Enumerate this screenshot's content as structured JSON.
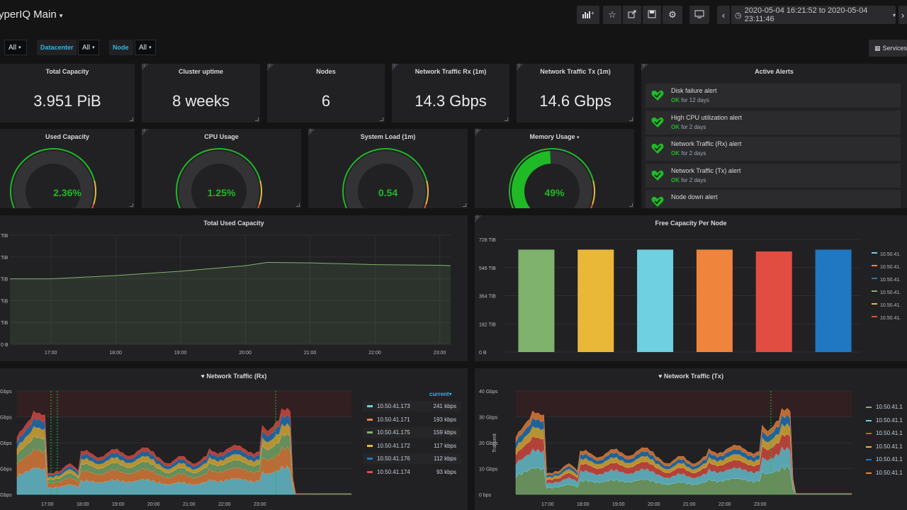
{
  "topbar": {
    "dashboard_title": "yperIQ Main",
    "time_range": "2020-05-04 16:21:52 to 2020-05-04 23:11:46",
    "icons": [
      "add-panel-icon",
      "star-icon",
      "share-icon",
      "save-icon",
      "settings-icon",
      "tv-mode-icon",
      "chevron-left-icon",
      "clock-icon",
      "chevron-right-icon"
    ]
  },
  "variables": {
    "first_value": "All",
    "datacenter_label": "Datacenter",
    "datacenter_value": "All",
    "node_label": "Node",
    "node_value": "All",
    "services_button": "Services"
  },
  "stats": {
    "total_capacity": {
      "title": "Total Capacity",
      "value": "3.951 PiB"
    },
    "cluster_uptime": {
      "title": "Cluster uptime",
      "value": "8 weeks"
    },
    "nodes": {
      "title": "Nodes",
      "value": "6"
    },
    "net_rx": {
      "title": "Network Traffic Rx (1m)",
      "value": "14.3 Gbps"
    },
    "net_tx": {
      "title": "Network Traffic Tx (1m)",
      "value": "14.6 Gbps"
    }
  },
  "gauges": {
    "used_capacity": {
      "title": "Used Capacity",
      "value": "2.36%",
      "fraction": 0.0236,
      "color": "#1fba26"
    },
    "cpu_usage": {
      "title": "CPU Usage",
      "value": "1.25%",
      "fraction": 0.0125,
      "color": "#1fba26"
    },
    "system_load": {
      "title": "System Load  (1m)",
      "value": "0.54",
      "fraction": 0.0,
      "color": "#1fba26"
    },
    "memory_usage": {
      "title": "Memory Usage",
      "value": "49%",
      "fraction": 0.49,
      "color": "#1fba26"
    }
  },
  "alerts": {
    "title": "Active Alerts",
    "items": [
      {
        "name": "Disk failure alert",
        "state": "OK",
        "since": "for 12 days"
      },
      {
        "name": "High CPU utilization alert",
        "state": "OK",
        "since": "for 2 days"
      },
      {
        "name": "Network Traffic (Rx) alert",
        "state": "OK",
        "since": "for 2 days"
      },
      {
        "name": "Network Traffic (Tx) alert",
        "state": "OK",
        "since": "for 2 days"
      },
      {
        "name": "Node down alert",
        "state": "",
        "since": ""
      }
    ]
  },
  "colors": {
    "ok": "#1fba26",
    "accent": "#33b5e5",
    "panel": "#212124",
    "series": [
      "#7eb26d",
      "#eab839",
      "#6ed0e0",
      "#ef843c",
      "#e24d42",
      "#1f78c1"
    ]
  },
  "chart_data": [
    {
      "type": "area",
      "title": "Total Used Capacity",
      "x_ticks": [
        "17:00",
        "18:00",
        "19:00",
        "20:00",
        "21:00",
        "22:00",
        "23:00"
      ],
      "y_ticks": [
        "0 B",
        "TiB",
        "TiB",
        "TiB",
        "TiB",
        "TiB"
      ],
      "ylim": [
        0,
        5
      ],
      "x": [
        "16:22",
        "17:00",
        "18:00",
        "19:00",
        "20:00",
        "20:20",
        "21:00",
        "22:00",
        "23:00",
        "23:10"
      ],
      "values": [
        3.0,
        3.0,
        3.15,
        3.35,
        3.6,
        3.75,
        3.73,
        3.65,
        3.62,
        3.6
      ],
      "series": [
        {
          "name": "",
          "color": "#7eb26d"
        }
      ]
    },
    {
      "type": "bar",
      "title": "Free Capacity Per Node",
      "y_ticks": [
        "0 B",
        "182 TiB",
        "364 TiB",
        "546 TiB",
        "728 TiB"
      ],
      "ylim": [
        0,
        728
      ],
      "categories": [
        "10.50.41.",
        "10.50.41.",
        "10.50.41.",
        "10.50.41.",
        "10.50.41.",
        "10.50.41."
      ],
      "values": [
        662,
        662,
        662,
        662,
        650,
        662
      ],
      "colors": [
        "#7eb26d",
        "#eab839",
        "#6ed0e0",
        "#ef843c",
        "#e24d42",
        "#1f78c1"
      ],
      "legend_colors": [
        "#6ed0e0",
        "#ef843c",
        "#1f78c1",
        "#7eb26d",
        "#eab839",
        "#e24d42"
      ]
    },
    {
      "type": "area",
      "title": "Network Traffic (Rx)",
      "x_ticks": [
        "17:00",
        "18:00",
        "19:00",
        "20:00",
        "21:00",
        "22:00",
        "23:00"
      ],
      "y_ticks": [
        "Gbps",
        "Gbps",
        "Gbps",
        "Gbps",
        "Gbps"
      ],
      "ylim": [
        0,
        40
      ],
      "threshold": 30,
      "legend_header": "current",
      "series": [
        {
          "name": "10.50.41.173",
          "current": "241 kbps",
          "color": "#6ed0e0"
        },
        {
          "name": "10.50.41.171",
          "current": "193 kbps",
          "color": "#ef843c"
        },
        {
          "name": "10.50.41.175",
          "current": "159 kbps",
          "color": "#7eb26d"
        },
        {
          "name": "10.50.41.172",
          "current": "117 kbps",
          "color": "#eab839"
        },
        {
          "name": "10.50.41.176",
          "current": "112 kbps",
          "color": "#1f78c1"
        },
        {
          "name": "10.50.41.174",
          "current": "93 kbps",
          "color": "#e24d42"
        }
      ]
    },
    {
      "type": "area",
      "title": "Network Traffic (Tx)",
      "ylabel": "Transmit",
      "x_ticks": [
        "17:00",
        "18:00",
        "19:00",
        "20:00",
        "21:00",
        "22:00",
        "23:00"
      ],
      "y_ticks": [
        "0 bps",
        "10 Gbps",
        "20 Gbps",
        "30 Gbps",
        "40 Gbps"
      ],
      "ylim": [
        0,
        40
      ],
      "threshold": 30,
      "series": [
        {
          "name": "10.50.41.1",
          "color": "#7eb26d"
        },
        {
          "name": "10.50.41.1",
          "color": "#6ed0e0"
        },
        {
          "name": "10.50.41.1",
          "color": "#e24d42"
        },
        {
          "name": "10.50.41.1",
          "color": "#eab839"
        },
        {
          "name": "10.50.41.1",
          "color": "#1f78c1"
        },
        {
          "name": "10.50.41.1",
          "color": "#ef843c"
        }
      ]
    }
  ]
}
